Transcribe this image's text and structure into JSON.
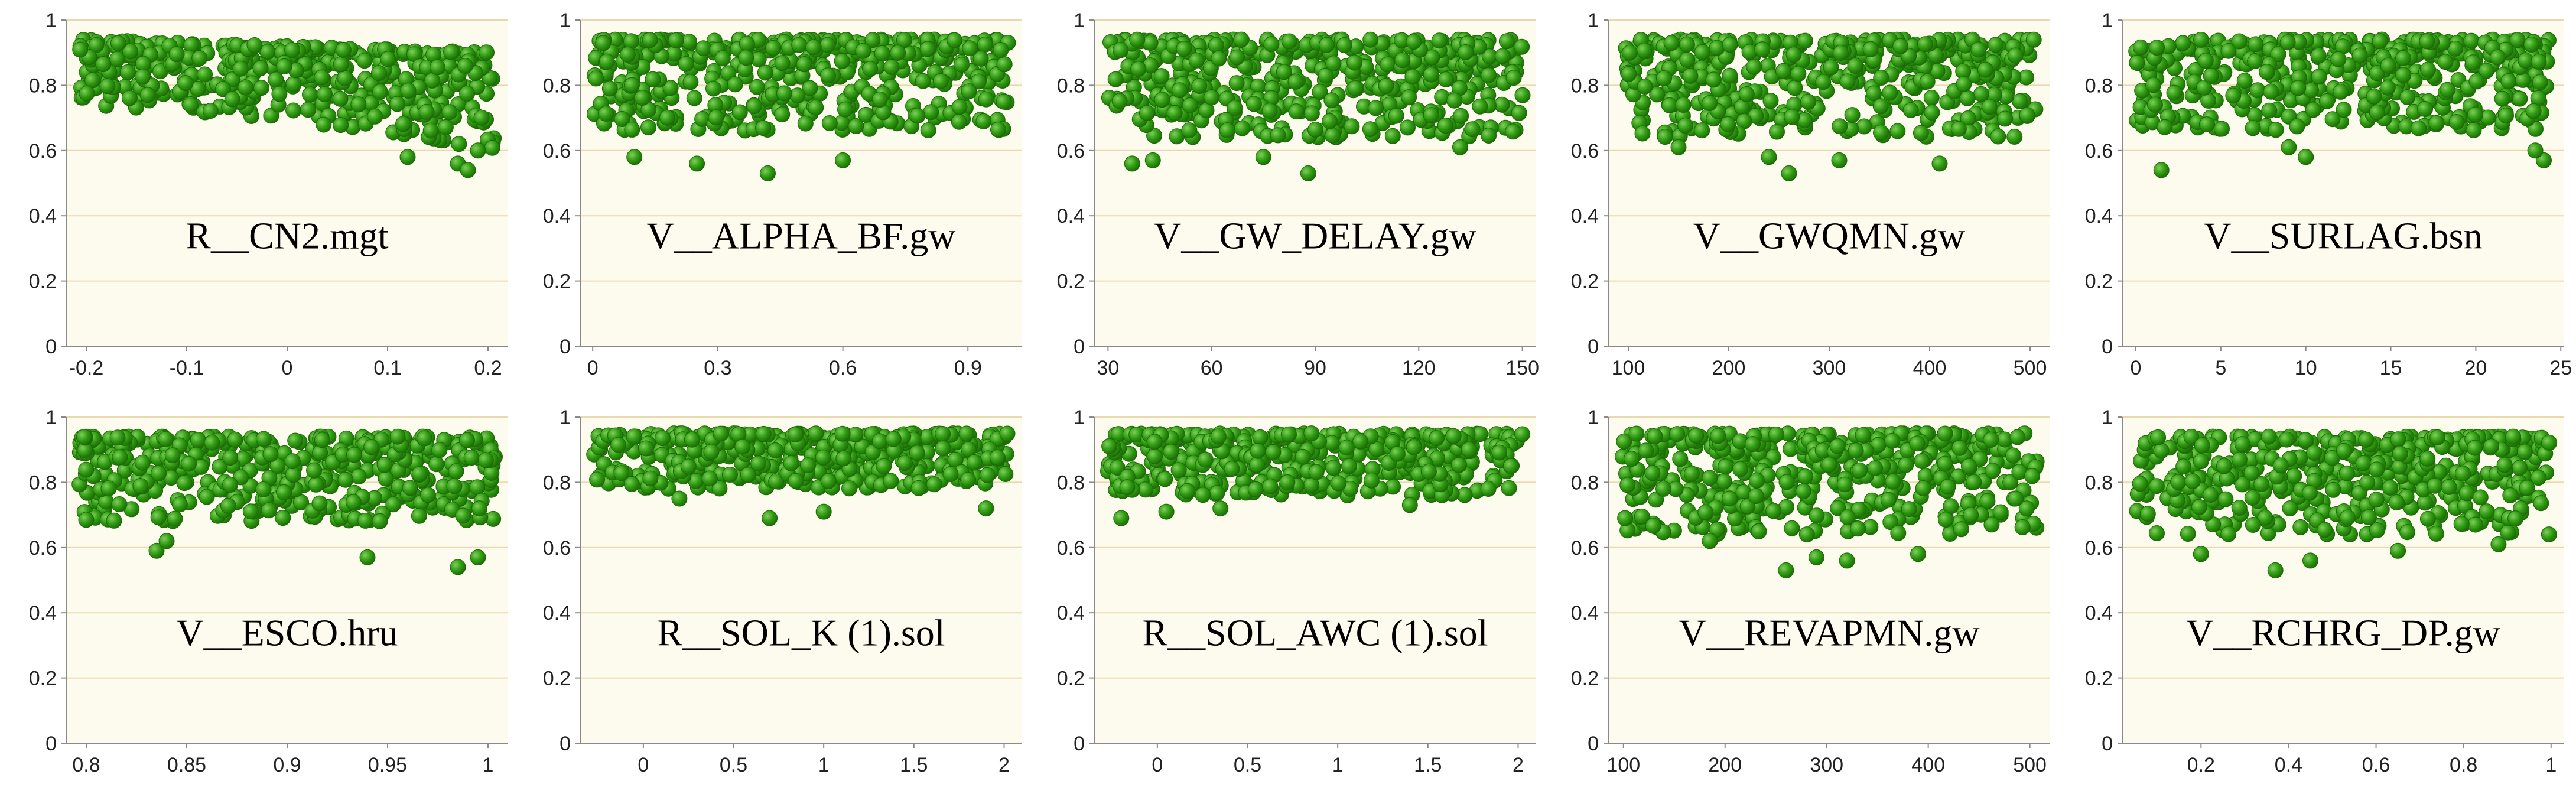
{
  "colors": {
    "plot_background": "#fdfbee",
    "gridline": "#e8d9b0",
    "axis": "#8a8a8a",
    "point_fill": "#2f9a12",
    "point_dark": "#1c6a06",
    "point_light": "#7fd05a"
  },
  "chart_data": [
    {
      "type": "scatter",
      "title": "R__CN2.mgt",
      "xlim": [
        -0.22,
        0.22
      ],
      "xticks": [
        -0.2,
        -0.1,
        0,
        0.1,
        0.2
      ],
      "xtick_labels": [
        "-0.2",
        "-0.1",
        "0",
        "0.1",
        "0.2"
      ],
      "ylim": [
        0,
        1
      ],
      "yticks": [
        0,
        0.2,
        0.4,
        0.6,
        0.8,
        1
      ],
      "ytick_labels": [
        "0",
        "0.2",
        "0.4",
        "0.6",
        "0.8",
        "1"
      ],
      "trend": "decreasing",
      "n": 420,
      "y_band": [
        0.72,
        0.94
      ],
      "y_end": [
        0.6,
        0.9
      ],
      "outliers": [
        [
          0.12,
          0.58
        ],
        [
          0.17,
          0.56
        ],
        [
          0.18,
          0.54
        ],
        [
          0.19,
          0.6
        ]
      ]
    },
    {
      "type": "scatter",
      "title": "V__ALPHA_BF.gw",
      "xlim": [
        -0.03,
        1.03
      ],
      "xticks": [
        0,
        0.3,
        0.6,
        0.9
      ],
      "xtick_labels": [
        "0",
        "0.3",
        "0.6",
        "0.9"
      ],
      "ylim": [
        0,
        1
      ],
      "yticks": [
        0,
        0.2,
        0.4,
        0.6,
        0.8,
        1
      ],
      "ytick_labels": [
        "0",
        "0.2",
        "0.4",
        "0.6",
        "0.8",
        "1"
      ],
      "trend": "flat",
      "n": 420,
      "y_band": [
        0.66,
        0.94
      ],
      "outliers": [
        [
          0.1,
          0.58
        ],
        [
          0.25,
          0.56
        ],
        [
          0.42,
          0.53
        ],
        [
          0.6,
          0.57
        ]
      ]
    },
    {
      "type": "scatter",
      "title": "V__GW_DELAY.gw",
      "xlim": [
        26,
        154
      ],
      "xticks": [
        30,
        60,
        90,
        120,
        150
      ],
      "xtick_labels": [
        "30",
        "60",
        "90",
        "120",
        "150"
      ],
      "ylim": [
        0,
        1
      ],
      "yticks": [
        0,
        0.2,
        0.4,
        0.6,
        0.8,
        1
      ],
      "ytick_labels": [
        "0",
        "0.2",
        "0.4",
        "0.6",
        "0.8",
        "1"
      ],
      "trend": "flat",
      "n": 420,
      "y_band": [
        0.64,
        0.94
      ],
      "outliers": [
        [
          37,
          0.56
        ],
        [
          43,
          0.57
        ],
        [
          75,
          0.58
        ],
        [
          88,
          0.53
        ],
        [
          132,
          0.61
        ]
      ]
    },
    {
      "type": "scatter",
      "title": "V__GWQMN.gw",
      "xlim": [
        80,
        520
      ],
      "xticks": [
        100,
        200,
        300,
        400,
        500
      ],
      "xtick_labels": [
        "100",
        "200",
        "300",
        "400",
        "500"
      ],
      "ylim": [
        0,
        1
      ],
      "yticks": [
        0,
        0.2,
        0.4,
        0.6,
        0.8,
        1
      ],
      "ytick_labels": [
        "0",
        "0.2",
        "0.4",
        "0.6",
        "0.8",
        "1"
      ],
      "trend": "flat",
      "n": 420,
      "y_band": [
        0.64,
        0.94
      ],
      "outliers": [
        [
          150,
          0.61
        ],
        [
          240,
          0.58
        ],
        [
          260,
          0.53
        ],
        [
          310,
          0.57
        ],
        [
          410,
          0.56
        ]
      ]
    },
    {
      "type": "scatter",
      "title": "V__SURLAG.bsn",
      "xlim": [
        -0.8,
        25.2
      ],
      "xticks": [
        0,
        5,
        10,
        15,
        20,
        25
      ],
      "xtick_labels": [
        "0",
        "5",
        "10",
        "15",
        "20",
        "25"
      ],
      "ylim": [
        0,
        1
      ],
      "yticks": [
        0,
        0.2,
        0.4,
        0.6,
        0.8,
        1
      ],
      "ytick_labels": [
        "0",
        "0.2",
        "0.4",
        "0.6",
        "0.8",
        "1"
      ],
      "trend": "flat",
      "n": 420,
      "y_band": [
        0.66,
        0.94
      ],
      "outliers": [
        [
          1.5,
          0.54
        ],
        [
          9,
          0.61
        ],
        [
          10,
          0.58
        ],
        [
          24,
          0.57
        ],
        [
          23.5,
          0.6
        ]
      ]
    },
    {
      "type": "scatter",
      "title": "V__ESCO.hru",
      "xlim": [
        0.79,
        1.01
      ],
      "xticks": [
        0.8,
        0.85,
        0.9,
        0.95,
        1
      ],
      "xtick_labels": [
        "0.8",
        "0.85",
        "0.9",
        "0.95",
        "1"
      ],
      "ylim": [
        0,
        1
      ],
      "yticks": [
        0,
        0.2,
        0.4,
        0.6,
        0.8,
        1
      ],
      "ytick_labels": [
        "0",
        "0.2",
        "0.4",
        "0.6",
        "0.8",
        "1"
      ],
      "trend": "flat",
      "n": 420,
      "y_band": [
        0.68,
        0.94
      ],
      "outliers": [
        [
          0.835,
          0.59
        ],
        [
          0.84,
          0.62
        ],
        [
          0.94,
          0.57
        ],
        [
          0.985,
          0.54
        ],
        [
          0.995,
          0.57
        ]
      ]
    },
    {
      "type": "scatter",
      "title": "R__SOL_K (1).sol",
      "xlim": [
        -0.35,
        2.1
      ],
      "xticks": [
        0,
        0.5,
        1,
        1.5,
        2
      ],
      "xtick_labels": [
        "0",
        "0.5",
        "1",
        "1.5",
        "2"
      ],
      "ylim": [
        0,
        1
      ],
      "yticks": [
        0,
        0.2,
        0.4,
        0.6,
        0.8,
        1
      ],
      "ytick_labels": [
        "0",
        "0.2",
        "0.4",
        "0.6",
        "0.8",
        "1"
      ],
      "trend": "flat",
      "n": 420,
      "y_band": [
        0.78,
        0.95
      ],
      "outliers": [
        [
          0.7,
          0.69
        ],
        [
          1.0,
          0.71
        ],
        [
          0.2,
          0.75
        ],
        [
          1.9,
          0.72
        ]
      ]
    },
    {
      "type": "scatter",
      "title": "R__SOL_AWC (1).sol",
      "xlim": [
        -0.35,
        2.1
      ],
      "xticks": [
        0,
        0.5,
        1,
        1.5,
        2
      ],
      "xtick_labels": [
        "0",
        "0.5",
        "1",
        "1.5",
        "2"
      ],
      "ylim": [
        0,
        1
      ],
      "yticks": [
        0,
        0.2,
        0.4,
        0.6,
        0.8,
        1
      ],
      "ytick_labels": [
        "0",
        "0.2",
        "0.4",
        "0.6",
        "0.8",
        "1"
      ],
      "trend": "flat",
      "n": 420,
      "y_band": [
        0.76,
        0.95
      ],
      "outliers": [
        [
          -0.2,
          0.69
        ],
        [
          0.35,
          0.72
        ],
        [
          1.4,
          0.73
        ],
        [
          0.05,
          0.71
        ]
      ]
    },
    {
      "type": "scatter",
      "title": "V__REVAPMN.gw",
      "xlim": [
        85,
        520
      ],
      "xticks": [
        100,
        200,
        300,
        400,
        500
      ],
      "xtick_labels": [
        "100",
        "200",
        "300",
        "400",
        "500"
      ],
      "ylim": [
        0,
        1
      ],
      "yticks": [
        0,
        0.2,
        0.4,
        0.6,
        0.8,
        1
      ],
      "ytick_labels": [
        "0",
        "0.2",
        "0.4",
        "0.6",
        "0.8",
        "1"
      ],
      "trend": "flat",
      "n": 420,
      "y_band": [
        0.64,
        0.95
      ],
      "outliers": [
        [
          185,
          0.62
        ],
        [
          260,
          0.53
        ],
        [
          290,
          0.57
        ],
        [
          320,
          0.56
        ],
        [
          390,
          0.58
        ]
      ]
    },
    {
      "type": "scatter",
      "title": "V__RCHRG_DP.gw",
      "xlim": [
        0.02,
        1.03
      ],
      "xticks": [
        0.2,
        0.4,
        0.6,
        0.8,
        1
      ],
      "xtick_labels": [
        "0.2",
        "0.4",
        "0.6",
        "0.8",
        "1"
      ],
      "ylim": [
        0,
        1
      ],
      "yticks": [
        0,
        0.2,
        0.4,
        0.6,
        0.8,
        1
      ],
      "ytick_labels": [
        "0",
        "0.2",
        "0.4",
        "0.6",
        "0.8",
        "1"
      ],
      "trend": "flat",
      "n": 420,
      "y_band": [
        0.64,
        0.94
      ],
      "outliers": [
        [
          0.2,
          0.58
        ],
        [
          0.37,
          0.53
        ],
        [
          0.45,
          0.56
        ],
        [
          0.65,
          0.59
        ],
        [
          0.88,
          0.61
        ]
      ]
    }
  ]
}
